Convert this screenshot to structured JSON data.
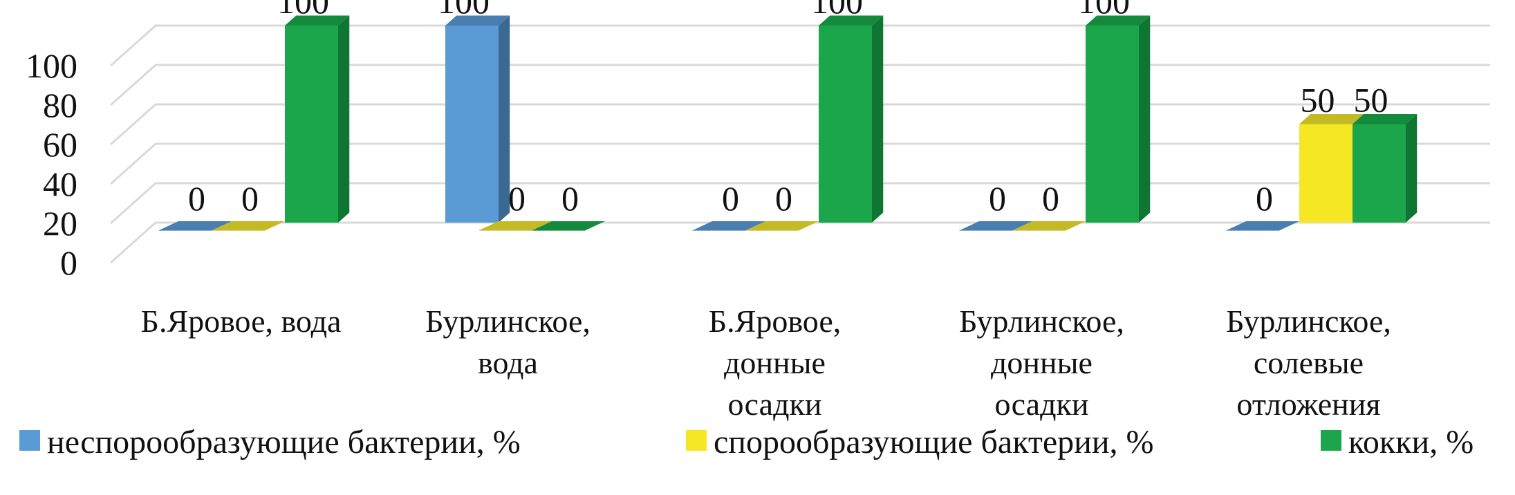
{
  "chart_data": {
    "type": "bar",
    "title": "",
    "xlabel": "",
    "ylabel": "",
    "ylim": [
      0,
      100
    ],
    "yticks": [
      0,
      20,
      40,
      60,
      80,
      100
    ],
    "grid": true,
    "legend_position": "bottom",
    "categories": [
      [
        "Б.Яровое, вода"
      ],
      [
        "Бурлинское,",
        "вода"
      ],
      [
        "Б.Яровое,",
        "донные",
        "осадки"
      ],
      [
        "Бурлинское,",
        "донные",
        "осадки"
      ],
      [
        "Бурлинское,",
        "солевые",
        "отложения"
      ]
    ],
    "series": [
      {
        "name": "неспорообразующие бактерии, %",
        "values": [
          0,
          100,
          0,
          0,
          0
        ],
        "color": "#5B9BD5",
        "side_color": "#3A6A93",
        "top_color": "#4A7DB0"
      },
      {
        "name": "спорообразующие бактерии, %",
        "values": [
          0,
          0,
          0,
          0,
          50
        ],
        "color": "#F5E723",
        "side_color": "#A7A126",
        "top_color": "#C4BA26"
      },
      {
        "name": "кокки, %",
        "values": [
          100,
          0,
          100,
          100,
          50
        ],
        "color": "#1CA64C",
        "side_color": "#0F7533",
        "top_color": "#138A3C"
      }
    ]
  }
}
